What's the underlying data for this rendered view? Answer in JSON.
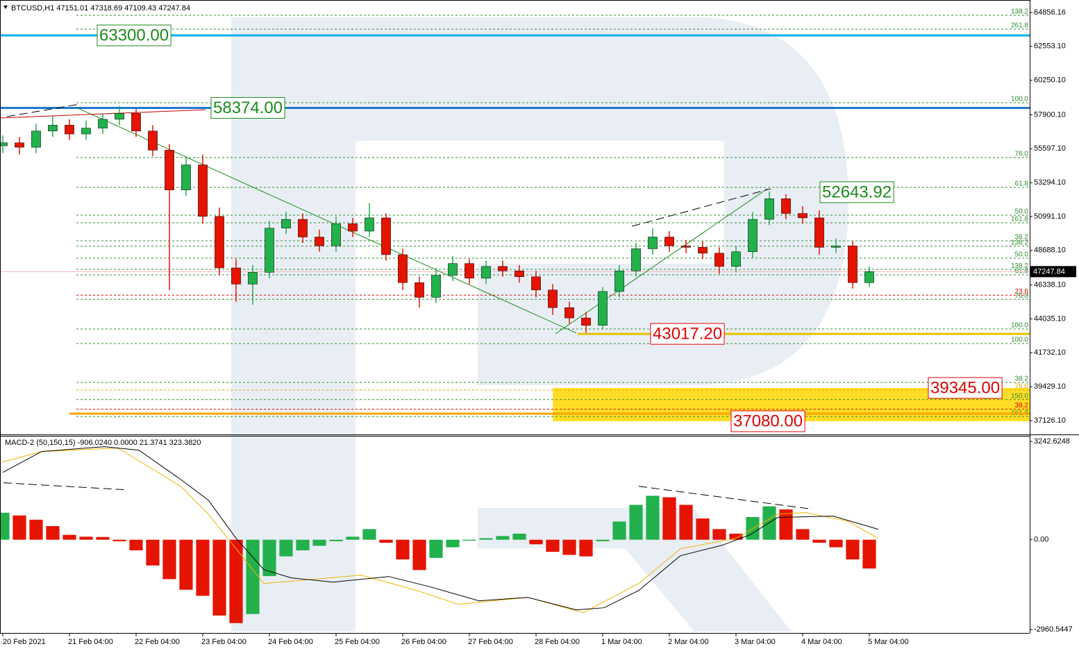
{
  "chart_data": [
    {
      "type": "candlestick",
      "title": "BTCUSD,H1  47151.01 47318.69 47109.43 47247.84",
      "x": [
        4,
        10,
        16,
        22,
        28,
        34,
        40,
        46,
        52,
        58,
        64,
        70,
        76,
        82,
        88,
        94,
        100,
        106,
        112,
        118,
        124,
        130,
        136,
        142,
        148,
        154,
        160,
        166,
        172,
        178,
        184,
        190,
        196,
        202,
        208,
        214,
        220,
        226,
        232,
        238,
        244,
        250,
        256,
        262,
        268,
        274,
        280,
        286,
        292,
        298,
        304,
        310,
        316
      ],
      "open": [
        55800,
        56000,
        55700,
        56800,
        57200,
        56600,
        57000,
        57600,
        58000,
        56800,
        55500,
        52800,
        54500,
        51000,
        47500,
        46400,
        47200,
        50200,
        50800,
        49600,
        49000,
        50500,
        50000,
        50900,
        48400,
        46500,
        45500,
        47000,
        47800,
        46800,
        47600,
        47300,
        46900,
        46000,
        44800,
        44100,
        43600,
        45900,
        47300,
        48800,
        49600,
        49000,
        48900,
        48500,
        47600,
        48600,
        50800,
        52200,
        51200,
        50900,
        48900,
        49000,
        46500
      ],
      "high": [
        56500,
        56400,
        57300,
        57800,
        57600,
        57500,
        58000,
        58500,
        58300,
        57200,
        55900,
        55000,
        55200,
        51600,
        48100,
        47700,
        50700,
        51300,
        51200,
        50100,
        51000,
        50900,
        51900,
        51200,
        48800,
        46900,
        47500,
        48300,
        48100,
        48000,
        48000,
        47700,
        47300,
        46400,
        45200,
        44500,
        46200,
        47700,
        49200,
        50200,
        50000,
        49400,
        49300,
        48900,
        49000,
        51300,
        52700,
        52500,
        51700,
        51400,
        49500,
        49300,
        47600
      ],
      "low": [
        55300,
        55200,
        55300,
        56400,
        56200,
        56200,
        56600,
        57200,
        56400,
        55100,
        46000,
        52400,
        50500,
        47000,
        45200,
        45000,
        46800,
        49800,
        49200,
        48600,
        48600,
        49600,
        49600,
        48000,
        46000,
        44800,
        45100,
        46600,
        46400,
        46400,
        46900,
        46500,
        45500,
        44300,
        43700,
        43100,
        43300,
        45500,
        46900,
        48400,
        48600,
        48500,
        48100,
        47100,
        47200,
        48200,
        50400,
        50800,
        50500,
        48400,
        48500,
        46100,
        46200
      ],
      "close": [
        56000,
        55700,
        56800,
        57200,
        56600,
        57000,
        57600,
        58000,
        56800,
        55500,
        52800,
        54500,
        51000,
        47500,
        46400,
        47200,
        50200,
        50800,
        49600,
        49000,
        50500,
        50000,
        50900,
        48400,
        46500,
        45500,
        47000,
        47800,
        46800,
        47600,
        47300,
        46900,
        46000,
        44800,
        44100,
        43600,
        45900,
        47300,
        48800,
        49600,
        49000,
        48900,
        48500,
        47600,
        48600,
        50800,
        52200,
        51200,
        50900,
        48900,
        49000,
        46500,
        47247.84
      ],
      "up_color": "#22b14c",
      "down_color": "#e51400",
      "xlim": [
        3,
        373.75
      ],
      "ylim": [
        36230,
        65705
      ],
      "yticks": [
        64856.16,
        {
          "value": 62553.1,
          "label": "62553.10"
        },
        {
          "value": 60250.1,
          "label": "60250.10"
        },
        {
          "value": 57900.1,
          "label": "57900.10"
        },
        {
          "value": 55597.1,
          "label": "55597.10"
        },
        {
          "value": 53294.1,
          "label": "53294.10"
        },
        {
          "value": 50991.1,
          "label": "50991.10"
        },
        {
          "value": 48688.1,
          "label": "48688.10"
        },
        {
          "value": 46338.1,
          "label": "46338.10"
        },
        {
          "value": 44035.1,
          "label": "44035.10"
        },
        {
          "value": 41732.1,
          "label": "41732.10"
        },
        {
          "value": 39429.1,
          "label": "39429.10"
        },
        {
          "value": 37126.1,
          "label": "37126.10"
        }
      ],
      "last_price": 47247.84,
      "last_price_color": "#f4b6c2",
      "levels": [
        {
          "value": 64668,
          "label": "138.2",
          "color": "#2e8b2e"
        },
        {
          "value": 63724,
          "label": "261.8",
          "color": "#2e8b2e"
        },
        {
          "value": 58725,
          "label": "100.0",
          "color": "#2e8b2e"
        },
        {
          "value": 55000,
          "label": "76.0",
          "color": "#2e8b2e"
        },
        {
          "value": 52970,
          "label": "61.8",
          "color": "#2e8b2e"
        },
        {
          "value": 51085,
          "label": "50.0",
          "color": "#2e8b2e"
        },
        {
          "value": 50566,
          "label": "161.8",
          "color": "#2e8b2e"
        },
        {
          "value": 49340,
          "label": "38.2",
          "color": "#2e8b2e"
        },
        {
          "value": 48980,
          "label": "138.2",
          "color": "#2e8b2e"
        },
        {
          "value": 48160,
          "label": "50.0",
          "color": "#2e8b2e"
        },
        {
          "value": 47400,
          "label": "138.2",
          "color": "#2e8b2e"
        },
        {
          "value": 47030,
          "label": "61.8",
          "color": "#2e8b2e"
        },
        {
          "value": 45650,
          "label": "23.6",
          "color": "#e00000"
        },
        {
          "value": 45370,
          "label": "76.0",
          "color": "#2e8b2e"
        },
        {
          "value": 43350,
          "label": "100.0",
          "color": "#2e8b2e"
        },
        {
          "value": 42360,
          "label": "100.0",
          "color": "#2e8b2e"
        },
        {
          "value": 39720,
          "label": "38.2",
          "color": "#2e8b2e"
        },
        {
          "value": 39200,
          "label": "76.0",
          "color": "#e0a000"
        },
        {
          "value": 38550,
          "label": "150.0",
          "color": "#2e8b2e"
        },
        {
          "value": 37900,
          "label": "38.2",
          "color": "#e00000"
        },
        {
          "value": 37400,
          "label": "161.8",
          "color": "#2e8b2e"
        }
      ],
      "hlines": [
        {
          "value": 63300,
          "color": "#00b0f0",
          "x_from": 3
        },
        {
          "value": 58374,
          "color": "#1e78d0",
          "x_from": 3
        },
        {
          "value": 43017.2,
          "color": "#e6c200",
          "x_from": 211
        },
        {
          "value": 37600,
          "color": "#ffa500",
          "x_from": 28
        }
      ],
      "zone": {
        "low": 37080,
        "high": 39345,
        "x": [
          202,
          373.75
        ],
        "color": "#ffd700"
      },
      "trendlines": [
        {
          "color": "#1a8a1a",
          "dash": false,
          "x": [
            30.5,
            210.5
          ],
          "y": [
            58400,
            43070
          ]
        },
        {
          "color": "#1a8a1a",
          "dash": false,
          "x": [
            203,
            279.25
          ],
          "y": [
            43020,
            52880
          ]
        },
        {
          "color": "#000000",
          "dash": true,
          "x": [
            230.5,
            280.5
          ],
          "y": [
            50330,
            52880
          ]
        },
        {
          "color": "#000000",
          "dash": true,
          "x": [
            5.5,
            31.75
          ],
          "y": [
            57780,
            58630
          ]
        },
        {
          "color": "#c00000",
          "dash": false,
          "x": [
            3,
            77
          ],
          "y": [
            57690,
            58250
          ]
        }
      ],
      "annotations": [
        {
          "label": "63300.00",
          "value": 63300,
          "x": 38,
          "color": "#1a8a1a"
        },
        {
          "label": "58374.00",
          "value": 58374,
          "x": 79,
          "color": "#1a8a1a"
        },
        {
          "label": "52643.92",
          "value": 52643.92,
          "x": 298.25,
          "color": "#1a8a1a"
        },
        {
          "label": "43017.20",
          "value": 43017.2,
          "x": 237.25,
          "color": "#e00000"
        },
        {
          "label": "39345.00",
          "value": 39345,
          "x": 337.25,
          "color": "#e00000"
        },
        {
          "label": "37080.00",
          "value": 37080,
          "x": 266.25,
          "color": "#e00000"
        }
      ]
    },
    {
      "type": "macd",
      "title": "MACD-2 (50,150,15) -906.0240 0.0000 21.3741 323.3820",
      "x": [
        4,
        10,
        16,
        22,
        28,
        34,
        40,
        46,
        52,
        58,
        64,
        70,
        76,
        82,
        88,
        94,
        100,
        106,
        112,
        118,
        124,
        130,
        136,
        142,
        148,
        154,
        160,
        166,
        172,
        178,
        184,
        190,
        196,
        202,
        208,
        214,
        220,
        226,
        232,
        238,
        244,
        250,
        256,
        262,
        268,
        274,
        280,
        286,
        292,
        298,
        304,
        310,
        316
      ],
      "histogram": [
        890,
        800,
        660,
        450,
        160,
        100,
        90,
        -50,
        -350,
        -850,
        -1300,
        -1650,
        -1850,
        -2500,
        -2750,
        -2450,
        -1200,
        -550,
        -350,
        -200,
        -50,
        100,
        350,
        -100,
        -650,
        -1000,
        -600,
        -250,
        -30,
        50,
        120,
        200,
        -150,
        -400,
        -500,
        -550,
        -50,
        600,
        1150,
        1450,
        1400,
        1150,
        700,
        350,
        200,
        750,
        1100,
        1000,
        350,
        -100,
        -250,
        -650,
        -950
      ],
      "up_color": "#22b14c",
      "down_color": "#e51400",
      "macd_line": {
        "color": "#000000",
        "x": [
          4,
          18,
          40.5,
          53,
          68,
          78,
          88,
          98,
          108,
          123,
          143,
          158,
          175.5,
          193,
          210.5,
          220.5,
          233,
          248,
          263,
          273,
          283,
          303,
          319.25
        ],
        "values": [
          2221,
          2908,
          3069,
          2954,
          1992,
          1305,
          46,
          -985,
          -1260,
          -1397,
          -1214,
          -1557,
          -2015,
          -1901,
          -2313,
          -2244,
          -1672,
          -527,
          -183,
          160,
          733,
          779,
          344
        ]
      },
      "signal_line": {
        "color": "#f0b400",
        "x": [
          4,
          18,
          45.5,
          68,
          78,
          88,
          98,
          113,
          133,
          153,
          168,
          193,
          213,
          233,
          248,
          268,
          283,
          293,
          308,
          319.25
        ],
        "values": [
          2565,
          2908,
          3023,
          1763,
          847,
          -298,
          -1443,
          -1328,
          -1168,
          -1672,
          -2130,
          -1901,
          -2405,
          -1443,
          -298,
          46,
          847,
          893,
          618,
          46
        ]
      },
      "trendlines": [
        {
          "color": "#000000",
          "dash": true,
          "x": [
            4.25,
            48
          ],
          "y": [
            1878,
            1649
          ]
        },
        {
          "color": "#000000",
          "dash": true,
          "x": [
            233,
            295.5
          ],
          "y": [
            1763,
            1008
          ]
        }
      ],
      "xlim": [
        3,
        373.75
      ],
      "ylim": [
        -3075,
        3380
      ],
      "yticks": [
        3242.6248,
        {
          "value": 0,
          "label": "0.00"
        },
        -2960.5447
      ],
      "xticks": [
        {
          "value": 4,
          "label": "20 Feb 2021"
        },
        {
          "value": 28,
          "label": "21 Feb 04:00"
        },
        {
          "value": 52,
          "label": "22 Feb 04:00"
        },
        {
          "value": 76,
          "label": "23 Feb 04:00"
        },
        {
          "value": 100,
          "label": "24 Feb 04:00"
        },
        {
          "value": 124,
          "label": "25 Feb 04:00"
        },
        {
          "value": 148,
          "label": "26 Feb 04:00"
        },
        {
          "value": 172,
          "label": "27 Feb 04:00"
        },
        {
          "value": 196,
          "label": "28 Feb 04:00"
        },
        {
          "value": 220,
          "label": "1 Mar 04:00"
        },
        {
          "value": 244,
          "label": "2 Mar 04:00"
        },
        {
          "value": 268,
          "label": "3 Mar 04:00"
        },
        {
          "value": 292,
          "label": "4 Mar 04:00"
        },
        {
          "value": 316,
          "label": "5 Mar 04:00"
        }
      ]
    }
  ]
}
